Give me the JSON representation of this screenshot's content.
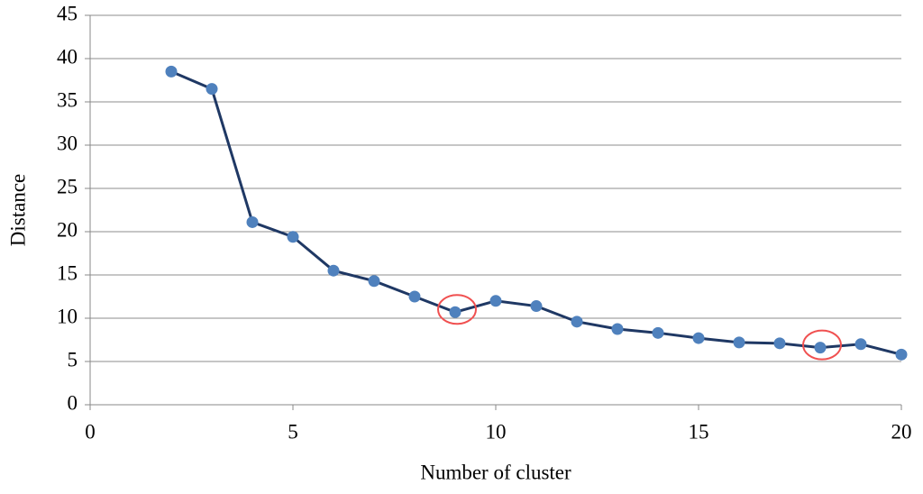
{
  "chart_data": {
    "type": "line",
    "x_label": "Number of cluster",
    "y_label": "Distance",
    "x": [
      2,
      3,
      4,
      5,
      6,
      7,
      8,
      9,
      10,
      11,
      12,
      13,
      14,
      15,
      16,
      17,
      18,
      19,
      20
    ],
    "values": [
      38.5,
      36.5,
      21.1,
      19.4,
      15.5,
      14.3,
      12.5,
      10.7,
      12.0,
      11.4,
      9.6,
      8.75,
      8.3,
      7.7,
      7.2,
      7.1,
      6.6,
      7.0,
      5.8
    ],
    "line_color": "#1f3864",
    "marker_color": "#4f81bd",
    "xlim": [
      0,
      20
    ],
    "xticks": [
      0,
      5,
      10,
      15,
      20
    ],
    "ylim": [
      0,
      45
    ],
    "yticks": [
      0,
      5,
      10,
      15,
      20,
      25,
      30,
      35,
      40,
      45
    ],
    "grid": true,
    "highlighted_x": [
      9,
      18
    ],
    "highlight_color": "#f05050"
  }
}
